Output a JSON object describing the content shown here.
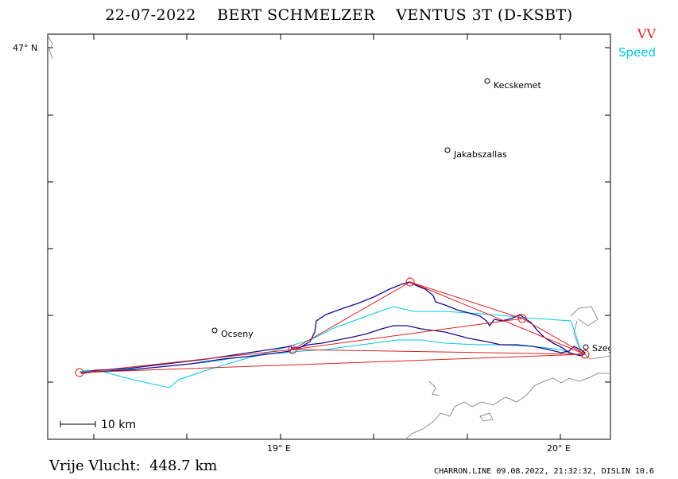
{
  "header": {
    "date": "22-07-2022",
    "pilot": "BERT SCHMELZER",
    "glider": "VENTUS 3T (D-KSBT)"
  },
  "legend": {
    "vv": "VV",
    "speed": "Speed"
  },
  "axes": {
    "lat_label": "47° N",
    "lon_labels": [
      "19° E",
      "20° E"
    ]
  },
  "places": [
    {
      "name": "Kecskemet"
    },
    {
      "name": "Jakabszallas"
    },
    {
      "name": "Ocseny"
    },
    {
      "name": "Szeged"
    }
  ],
  "scale": {
    "label": "10 km"
  },
  "footer": {
    "distance_label": "Vrije Vlucht:",
    "distance_value": "448.7 km",
    "credit": "CHARRON.LINE 09.08.2022, 21:32:32, DISLIN 10.6"
  },
  "colors": {
    "vv_route": "#e02020",
    "speed_track": "#00c8e8",
    "flight_track": "#1a0a8c",
    "border": "#909090",
    "frame": "#000000"
  }
}
